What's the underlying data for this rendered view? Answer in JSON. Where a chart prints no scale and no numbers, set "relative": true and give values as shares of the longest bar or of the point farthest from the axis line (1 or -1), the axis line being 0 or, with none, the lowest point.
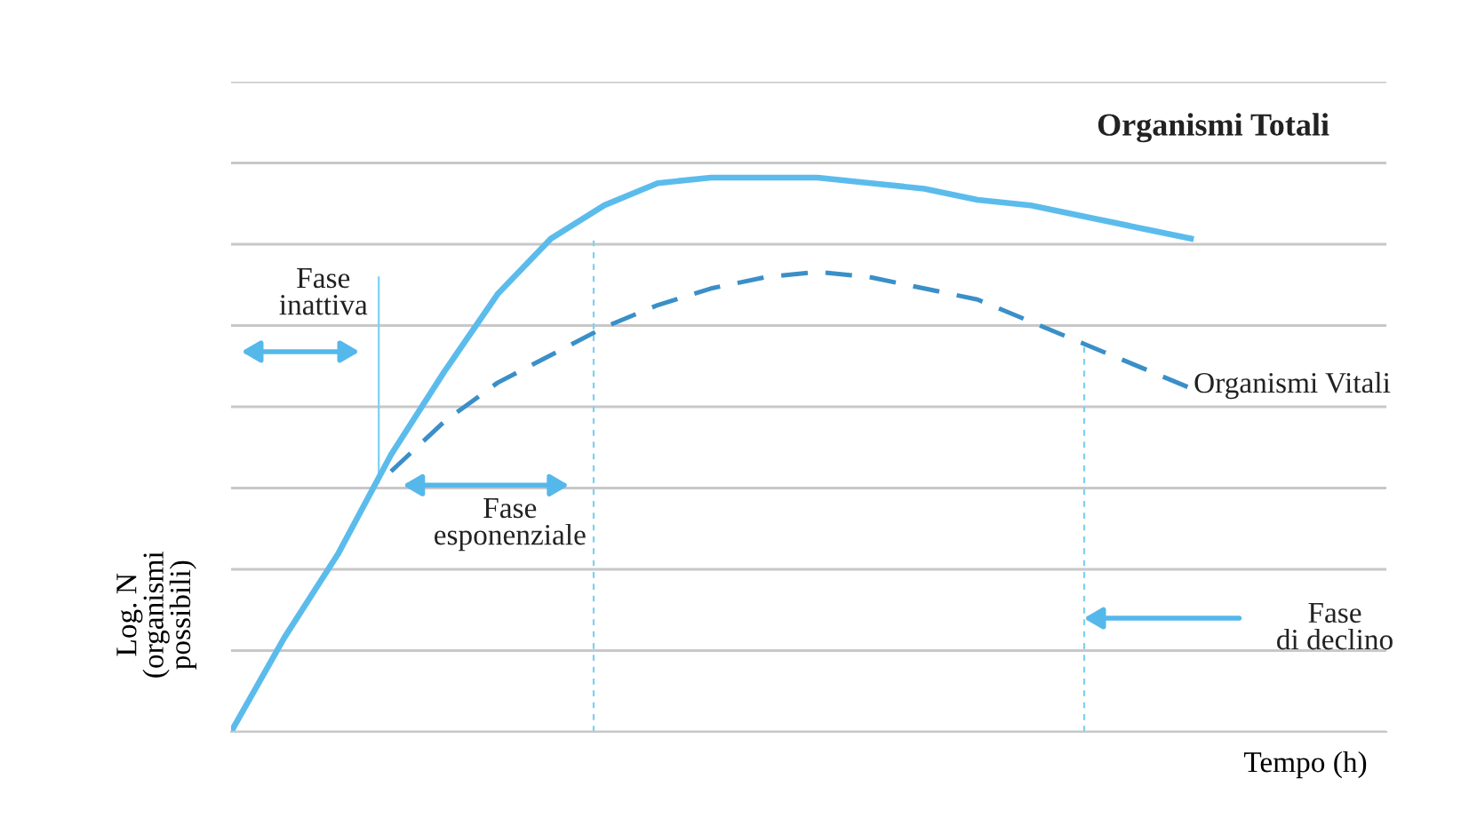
{
  "chart_data": {
    "type": "line",
    "relative": true,
    "xlabel": "Tempo (h)",
    "ylabel": "Log. N\n(organismi\npossibili)",
    "categories": [
      null,
      null,
      null,
      null,
      null,
      null,
      null,
      null,
      null,
      null,
      null,
      null,
      null,
      null,
      null,
      null,
      null,
      null,
      null,
      null
    ],
    "series": [
      {
        "name": "Organismi Totali",
        "color": "#5bbcec",
        "line_style": "solid",
        "values": [
          0,
          0.17,
          0.32,
          0.5,
          0.65,
          0.79,
          0.89,
          0.95,
          0.99,
          1.0,
          1.0,
          1.0,
          0.99,
          0.98,
          0.96,
          0.95,
          0.93,
          0.91,
          0.89,
          null
        ]
      },
      {
        "name": "Organismi Vitali",
        "color": "#3a8fc8",
        "line_style": "dashed",
        "values": [
          null,
          null,
          null,
          0.47,
          0.56,
          0.63,
          0.68,
          0.73,
          0.77,
          0.8,
          0.82,
          0.83,
          0.82,
          0.8,
          0.78,
          0.74,
          0.7,
          0.66,
          0.62,
          null
        ]
      }
    ],
    "annotations": [
      "Fase\ninattiva",
      "Fase\nesponenziale",
      "Fase\ndi declino"
    ],
    "grid": "y"
  }
}
